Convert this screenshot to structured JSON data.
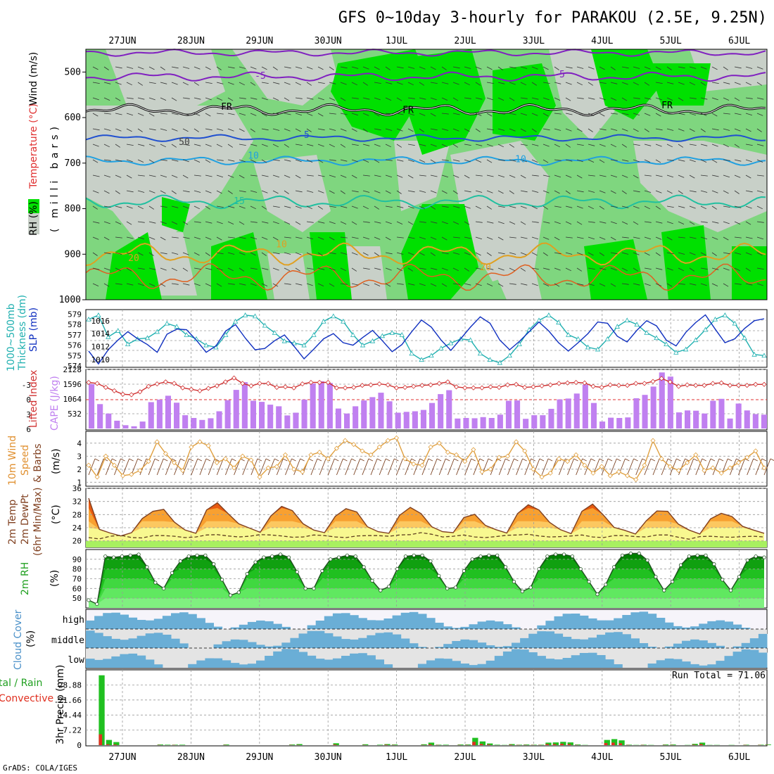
{
  "title": "GFS 0~10day 3-hourly for PARAKOU (2.5E, 9.25N)",
  "footer": "GrADS: COLA/IGES",
  "run_total": "Run Total = 71.06",
  "date_labels": [
    "27JUN",
    "28JUN",
    "29JUN",
    "30JUN",
    "1JUL",
    "2JUL",
    "3JUL",
    "4JUL",
    "5JUL",
    "6JUL"
  ],
  "labels": {
    "rh_pct": "RH (%)",
    "mb_a": "(",
    "mb_b": "milli",
    "mb_c": "bars)",
    "temp_c": "Temperature (°C)",
    "wind_ms": "Wind (m/s)",
    "thick_1": "1000~500mb",
    "thick_2": "Thickness (dm)",
    "slp": "SLP (mb)",
    "lifted": "Lifted Index",
    "cape": "CAPE (J/kg)",
    "wind10_a": "10m Wind",
    "wind10_b": "Speed",
    "wind10_c": "& Barbs",
    "wind10_d": "(m/s)",
    "t2m_a": "2m Temp",
    "t2m_b": "2m DewPt",
    "t2m_c": "(6hr Min/Max)",
    "t2m_d": "(°C)",
    "rh2m_a": "2m RH",
    "rh2m_b": "(%)",
    "cloud_a": "Cloud Cover",
    "cloud_b": "(%)",
    "cloud_high": "high",
    "cloud_middle": "middle",
    "cloud_low": "low",
    "precip_a": "tal / Rain",
    "precip_b": "Convective",
    "precip_c": "3hr Precip (mm)"
  },
  "contour_labels": [
    "-5",
    "-5",
    "FR",
    "FR",
    "FR",
    "-5",
    "50",
    "10",
    "10",
    "15",
    "10",
    "20",
    "20"
  ],
  "colors": {
    "rh_green_light": "#7fd67f",
    "rh_green_bright": "#00e000",
    "rh_grey": "#c8d0c8",
    "temp_purple": "#8020c0",
    "temp_blue": "#2050d0",
    "temp_lblue": "#20a0e0",
    "temp_teal": "#20c0a0",
    "temp_orange": "#e0a020",
    "temp_red": "#e06020",
    "temp_magenta": "#e00080",
    "slp_line": "#1030c0",
    "thickness_line": "#20b0b0",
    "lifted_line": "#d03030",
    "cape_bar": "#c080f0",
    "wind10_line": "#e0a040",
    "t2m_line": "#804020",
    "cloud_bg": "#e4e4e4",
    "cloud_fill": "#6aaed6",
    "precip_total": "#20c020",
    "precip_conv": "#e03020"
  },
  "chart_data": [
    {
      "type": "heatmap",
      "name": "Relative humidity / temperature / wind cross-section",
      "ylabel": "(millibars)",
      "yticks": [
        500,
        600,
        700,
        800,
        900,
        1000
      ],
      "ylim": [
        450,
        1000
      ],
      "temperature_isotherm_levels_mb": {
        "-5": [
          510,
          455
        ],
        "FR": [
          583
        ],
        "5": [
          645
        ],
        "10": [
          695
        ],
        "15": [
          790
        ],
        "20": [
          910
        ]
      }
    },
    {
      "type": "line",
      "name": "Thickness and SLP",
      "y_left_ticks": [
        574,
        575,
        576,
        577,
        578,
        579
      ],
      "y_right_ticks": [
        1010,
        1012,
        1014,
        1016
      ],
      "series": [
        {
          "name": "1000~500mb Thickness (dm)",
          "values": [
            578.5,
            578.9,
            576.8,
            577.4,
            576.1,
            576.6,
            576.7,
            577.3,
            578.1,
            577.8,
            577.0,
            576.6,
            576.0,
            575.8,
            577.0,
            578.3,
            578.9,
            578.8,
            577.9,
            577.2,
            576.4,
            576.2,
            576.0,
            577.0,
            578.3,
            578.8,
            578.3,
            577.0,
            576.0,
            576.4,
            576.9,
            577.2,
            577.0,
            575.2,
            574.6,
            575.0,
            575.7,
            576.2,
            576.6,
            576.5,
            575.2,
            574.6,
            574.3,
            575.0,
            576.1,
            577.5,
            578.4,
            578.9,
            578.2,
            577.0,
            576.6,
            575.8,
            575.6,
            576.6,
            577.8,
            578.4,
            578.0,
            577.2,
            576.7,
            576.1,
            575.3,
            575.6,
            576.5,
            577.5,
            578.5,
            578.9,
            578.1,
            576.7,
            575.1,
            575.0
          ]
        },
        {
          "name": "SLP (mb)",
          "values": [
            1011.3,
            1009.3,
            1011.5,
            1013.0,
            1014.3,
            1013.2,
            1012.3,
            1011.1,
            1013.9,
            1014.7,
            1014.6,
            1013.0,
            1011.1,
            1012.1,
            1014.4,
            1015.4,
            1013.3,
            1011.5,
            1011.7,
            1012.9,
            1013.8,
            1012.0,
            1010.1,
            1011.6,
            1013.2,
            1014.0,
            1012.6,
            1012.2,
            1013.4,
            1014.5,
            1012.9,
            1011.2,
            1012.3,
            1014.3,
            1016.1,
            1015.0,
            1013.0,
            1011.4,
            1013.2,
            1015.0,
            1016.6,
            1015.6,
            1013.0,
            1011.5,
            1012.8,
            1014.3,
            1015.8,
            1014.4,
            1012.6,
            1011.3,
            1012.6,
            1014.0,
            1015.8,
            1015.6,
            1013.6,
            1012.7,
            1014.5,
            1016.0,
            1015.2,
            1013.0,
            1012.1,
            1014.2,
            1015.7,
            1016.9,
            1014.7,
            1012.6,
            1013.2,
            1014.8,
            1016.0,
            1016.3
          ]
        }
      ]
    },
    {
      "type": "bar",
      "name": "Lifted Index and CAPE",
      "y_left_ticks": [
        -3,
        0,
        3,
        6
      ],
      "y_right_ticks": [
        532,
        1064,
        1596,
        2128
      ],
      "series": [
        {
          "name": "CAPE (J/kg)",
          "values": [
            1600,
            880,
            540,
            280,
            120,
            80,
            250,
            950,
            1040,
            1180,
            930,
            480,
            380,
            310,
            370,
            620,
            1020,
            1390,
            1670,
            1000,
            960,
            860,
            800,
            470,
            570,
            1040,
            1620,
            1700,
            1640,
            720,
            540,
            800,
            1010,
            1130,
            1290,
            980,
            570,
            600,
            620,
            670,
            920,
            1240,
            1380,
            360,
            380,
            370,
            410,
            380,
            500,
            1000,
            1010,
            350,
            480,
            480,
            710,
            1050,
            1080,
            1260,
            1580,
            920,
            250,
            390,
            380,
            400,
            1090,
            1210,
            1510,
            2020,
            1870,
            580,
            650,
            640,
            540,
            1000,
            1070,
            360,
            900,
            650,
            520,
            500
          ]
        },
        {
          "name": "Lifted Index",
          "values": [
            -3.5,
            -3.3,
            -2.5,
            -1.8,
            -1.1,
            -1.0,
            -1.6,
            -2.7,
            -3.2,
            -3.6,
            -3.3,
            -2.4,
            -2.1,
            -1.8,
            -2.3,
            -2.8,
            -3.6,
            -4.4,
            -3.3,
            -2.8,
            -3.3,
            -3.3,
            -2.5,
            -2.6,
            -2.4,
            -3.2,
            -3.5,
            -3.5,
            -3.5,
            -2.4,
            -2.4,
            -2.5,
            -2.9,
            -3.0,
            -3.2,
            -3.0,
            -2.4,
            -2.5,
            -2.7,
            -2.9,
            -3.0,
            -3.3,
            -3.6,
            -2.6,
            -2.4,
            -2.4,
            -2.4,
            -2.6,
            -2.5,
            -3.0,
            -3.1,
            -2.5,
            -2.6,
            -2.8,
            -3.0,
            -3.3,
            -3.4,
            -3.5,
            -3.4,
            -2.7,
            -2.5,
            -3.0,
            -2.9,
            -2.9,
            -3.3,
            -3.3,
            -3.7,
            -4.3,
            -3.6,
            -2.7,
            -3.0,
            -2.9,
            -2.9,
            -3.3,
            -3.4,
            -2.9,
            -2.9,
            -2.9,
            -3.1,
            -3.1
          ]
        }
      ]
    },
    {
      "type": "line",
      "name": "10m Wind Speed",
      "ylabel": "(m/s)",
      "yticks": [
        1,
        2,
        3,
        4
      ],
      "values": [
        2.3,
        1.4,
        3.0,
        2.3,
        1.5,
        1.6,
        1.9,
        2.6,
        4.1,
        3.2,
        2.5,
        1.9,
        3.7,
        4.1,
        3.8,
        2.5,
        2.8,
        2.1,
        3.0,
        2.7,
        1.4,
        2.1,
        2.2,
        3.1,
        2.0,
        1.8,
        3.1,
        3.3,
        2.8,
        3.6,
        4.2,
        3.9,
        3.4,
        3.1,
        3.7,
        4.2,
        4.4,
        2.8,
        2.4,
        2.3,
        3.7,
        4.0,
        3.3,
        3.1,
        2.6,
        3.5,
        1.8,
        2.0,
        2.9,
        3.0,
        4.1,
        3.4,
        2.0,
        1.4,
        1.7,
        2.8,
        2.6,
        3.1,
        2.3,
        1.7,
        2.2,
        1.5,
        1.8,
        1.5,
        1.2,
        2.3,
        4.2,
        2.8,
        2.2,
        1.9,
        2.5,
        3.1,
        1.9,
        2.1,
        1.7,
        2.1,
        2.5,
        2.9,
        3.4,
        2.1
      ]
    },
    {
      "type": "area",
      "name": "2m Temperature and Dew Point",
      "ylabel": "(°C)",
      "yticks": [
        20,
        24,
        28,
        32,
        36
      ],
      "series": [
        {
          "name": "2m Temp",
          "values": [
            33.0,
            23.5,
            22.4,
            21.5,
            22.5,
            26.8,
            29.0,
            29.6,
            25.7,
            23.3,
            22.3,
            29.4,
            31.6,
            28.3,
            25.2,
            23.9,
            22.6,
            27.6,
            30.5,
            29.2,
            25.2,
            23.3,
            22.5,
            27.5,
            29.8,
            28.8,
            24.3,
            22.8,
            22.3,
            27.8,
            30.2,
            28.3,
            24.3,
            22.8,
            22.5,
            27.1,
            28.1,
            24.7,
            23.4,
            22.4,
            28.3,
            31.0,
            29.4,
            25.6,
            23.4,
            22.2,
            29.0,
            31.2,
            27.9,
            24.1,
            23.2,
            22.1,
            26.1,
            29.1,
            29.0,
            25.1,
            23.3,
            22.1,
            26.7,
            28.4,
            27.4,
            24.4,
            23.3,
            22.3
          ]
        },
        {
          "name": "2m DewPt",
          "values": [
            21.0,
            20.6,
            21.4,
            21.7,
            21.0,
            20.9,
            21.6,
            21.6,
            21.4,
            21.0,
            21.2,
            21.8,
            21.9,
            21.5,
            21.2,
            21.4,
            21.9,
            21.8,
            21.5,
            21.1,
            21.2,
            21.8,
            21.6,
            21.2,
            21.0,
            21.5,
            21.6,
            21.6,
            21.4,
            21.8,
            21.9,
            22.5,
            22.0,
            21.2,
            21.4,
            21.8,
            21.2,
            21.0,
            21.3,
            21.7,
            21.8,
            22.0,
            21.5,
            21.2,
            21.3,
            21.5,
            21.8,
            21.2,
            21.0,
            21.6,
            21.6,
            21.3,
            21.2,
            21.8,
            21.8,
            21.1,
            20.5,
            21.3,
            21.4,
            21.2,
            21.1,
            21.3,
            21.4,
            21.2
          ]
        }
      ]
    },
    {
      "type": "area",
      "name": "2m RH",
      "ylabel": "(%)",
      "yticks": [
        50,
        60,
        70,
        80,
        90
      ],
      "values": [
        48,
        44,
        93,
        92,
        93,
        94,
        95,
        82,
        66,
        60,
        76,
        88,
        93,
        94,
        94,
        85,
        69,
        53,
        56,
        75,
        87,
        92,
        93,
        95,
        92,
        77,
        60,
        60,
        78,
        90,
        92,
        94,
        93,
        82,
        68,
        58,
        62,
        80,
        93,
        94,
        94,
        88,
        73,
        60,
        61,
        78,
        90,
        93,
        94,
        94,
        82,
        67,
        57,
        61,
        80,
        93,
        95,
        95,
        93,
        80,
        67,
        54,
        64,
        82,
        94,
        96,
        96,
        89,
        72,
        58,
        67,
        84,
        93,
        94,
        94,
        85,
        69,
        58,
        72,
        89,
        93,
        92
      ]
    },
    {
      "type": "heatmap",
      "name": "Cloud Cover",
      "rows": [
        "high",
        "middle",
        "low"
      ]
    },
    {
      "type": "bar",
      "name": "3hr Precip",
      "ylabel": "3hr Precip (mm)",
      "yticks": [
        0,
        7.22,
        14.44,
        21.66,
        28.88
      ],
      "series": [
        {
          "name": "Total",
          "values": [
            0,
            33.5,
            2.5,
            1.5,
            0,
            0,
            0,
            0,
            0,
            0.3,
            0.2,
            0.2,
            0.2,
            0,
            0,
            0,
            0,
            0,
            0.3,
            0,
            0,
            0,
            0,
            0,
            0,
            0,
            0,
            0.3,
            0.5,
            0,
            0,
            0,
            0,
            0.9,
            0,
            0,
            0,
            0.4,
            0,
            0.2,
            0.5,
            0.3,
            0,
            0,
            0,
            0.4,
            1.2,
            0.2,
            0.2,
            0,
            0.3,
            0.3,
            3.5,
            1.8,
            0.8,
            0.2,
            0.1,
            0.5,
            0.2,
            0.3,
            0.2,
            0.2,
            1.2,
            1.3,
            1.6,
            1.3,
            0.3,
            0.1,
            0,
            0,
            2.5,
            2.9,
            2.3,
            0.2,
            0.1,
            0.2,
            0.1,
            0,
            0.3,
            0.3,
            0,
            0.1,
            0.6,
            1.2,
            0.1,
            0.1,
            0,
            0.1,
            0,
            0.2,
            0,
            0.2,
            0.3
          ]
        },
        {
          "name": "Convective",
          "values": [
            0,
            5.2,
            0.4,
            0.3,
            0,
            0,
            0,
            0,
            0,
            0.1,
            0,
            0.1,
            0,
            0,
            0,
            0,
            0,
            0,
            0.1,
            0,
            0,
            0,
            0,
            0,
            0,
            0,
            0,
            0.1,
            0.1,
            0,
            0,
            0,
            0,
            0.3,
            0,
            0,
            0,
            0.1,
            0,
            0,
            0.2,
            0.1,
            0,
            0,
            0,
            0.1,
            0.4,
            0.1,
            0,
            0,
            0.1,
            0.1,
            1.6,
            0.6,
            0.3,
            0,
            0,
            0.2,
            0.1,
            0.1,
            0.1,
            0.1,
            0.5,
            0.5,
            0.7,
            0.5,
            0.1,
            0,
            0,
            0,
            1.0,
            1.2,
            0.9,
            0.1,
            0,
            0.1,
            0,
            0,
            0.1,
            0.1,
            0,
            0,
            0.2,
            0.5,
            0,
            0,
            0,
            0,
            0,
            0.1,
            0,
            0.1,
            0.1
          ]
        }
      ]
    }
  ]
}
